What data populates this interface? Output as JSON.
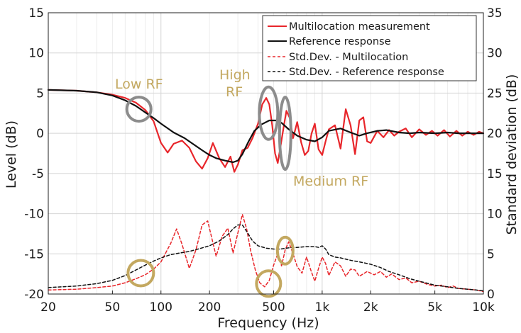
{
  "chart_data": {
    "type": "line",
    "xlabel": "Frequency (Hz)",
    "ylabel_left": "Level (dB)",
    "ylabel_right": "Standard deviation (dB)",
    "x_scale": "log",
    "xlim": [
      20,
      10000
    ],
    "ylim_left": [
      -20,
      15
    ],
    "ylim_right": [
      0,
      35
    ],
    "x_ticks": [
      20,
      50,
      100,
      200,
      500,
      1000,
      2000,
      5000,
      10000
    ],
    "x_tick_labels": [
      "20",
      "50",
      "100",
      "200",
      "500",
      "1k",
      "2k",
      "5k",
      "10k"
    ],
    "y_ticks_left": [
      15,
      10,
      5,
      0,
      -5,
      -10,
      -15,
      -20
    ],
    "y_tick_labels_left": [
      "15",
      "10",
      "5",
      "0",
      "-5",
      "-10",
      "-15",
      "-20"
    ],
    "y_ticks_right": [
      35,
      30,
      25,
      20,
      15,
      10,
      5,
      0
    ],
    "y_tick_labels_right": [
      "35",
      "30",
      "25",
      "20",
      "15",
      "10",
      "5",
      "0"
    ],
    "grid": true,
    "legend_position": "top-right",
    "series": [
      {
        "name": "Multilocation measurement",
        "color": "#e8262b",
        "style": "solid",
        "axis": "left",
        "x": [
          20,
          30,
          40,
          50,
          60,
          70,
          80,
          90,
          100,
          110,
          120,
          135,
          150,
          165,
          180,
          195,
          210,
          230,
          250,
          270,
          285,
          300,
          320,
          345,
          370,
          400,
          425,
          450,
          470,
          490,
          510,
          530,
          550,
          575,
          600,
          630,
          660,
          700,
          740,
          780,
          820,
          860,
          900,
          950,
          1000,
          1050,
          1100,
          1200,
          1300,
          1400,
          1500,
          1600,
          1700,
          1800,
          1900,
          2000,
          2200,
          2400,
          2600,
          2800,
          3000,
          3300,
          3600,
          4000,
          4400,
          4800,
          5200,
          5700,
          6200,
          6800,
          7400,
          8000,
          8700,
          9400,
          10000
        ],
        "y": [
          5.4,
          5.3,
          5.1,
          4.8,
          4.4,
          3.8,
          2.9,
          1.5,
          -1.2,
          -2.4,
          -1.3,
          -0.9,
          -1.8,
          -3.5,
          -4.4,
          -3.1,
          -1.2,
          -3.1,
          -4.2,
          -2.9,
          -4.8,
          -3.9,
          -2.1,
          -1.8,
          -0.6,
          1.2,
          3.6,
          4.4,
          3.6,
          1.0,
          -2.5,
          -3.7,
          -1.8,
          0.6,
          2.8,
          1.9,
          -0.6,
          1.4,
          -1.1,
          -2.7,
          -2.2,
          0.0,
          1.2,
          -2.0,
          -2.7,
          -1.0,
          0.5,
          1.0,
          -1.9,
          3.0,
          1.0,
          -2.6,
          1.6,
          2.0,
          -1.0,
          -1.2,
          0.3,
          -0.5,
          0.4,
          -0.3,
          0.2,
          0.6,
          -0.5,
          0.5,
          -0.2,
          0.3,
          -0.3,
          0.4,
          -0.4,
          0.3,
          -0.3,
          0.2,
          -0.2,
          0.2,
          0.0
        ]
      },
      {
        "name": "Reference response",
        "color": "#111111",
        "style": "solid",
        "axis": "left",
        "x": [
          20,
          30,
          40,
          50,
          60,
          70,
          80,
          90,
          100,
          120,
          140,
          160,
          180,
          200,
          220,
          250,
          280,
          300,
          320,
          350,
          380,
          420,
          470,
          520,
          560,
          620,
          700,
          800,
          900,
          1000,
          1100,
          1300,
          1500,
          1700,
          1900,
          2200,
          2500,
          3000,
          3500,
          4000,
          5000,
          6000,
          7000,
          8000,
          9000,
          10000
        ],
        "y": [
          5.4,
          5.3,
          5.1,
          4.7,
          4.1,
          3.4,
          2.6,
          1.9,
          1.2,
          0.1,
          -0.6,
          -1.4,
          -2.1,
          -2.7,
          -3.1,
          -3.4,
          -3.6,
          -3.4,
          -2.6,
          -1.0,
          0.3,
          1.1,
          1.6,
          1.6,
          1.3,
          0.5,
          -0.3,
          -0.8,
          -1.0,
          -0.5,
          0.3,
          0.6,
          0.1,
          -0.3,
          0.0,
          0.3,
          0.4,
          0.1,
          0.0,
          0.1,
          0.0,
          0.1,
          0.0,
          0.0,
          0.0,
          0.0
        ]
      },
      {
        "name": "Std.Dev. - Multilocation",
        "color": "#e8262b",
        "style": "dashed",
        "axis": "right",
        "x": [
          20,
          30,
          40,
          50,
          60,
          70,
          80,
          90,
          100,
          115,
          125,
          135,
          150,
          165,
          180,
          195,
          210,
          220,
          240,
          260,
          280,
          300,
          320,
          340,
          360,
          385,
          410,
          440,
          470,
          500,
          530,
          560,
          590,
          620,
          660,
          700,
          750,
          800,
          850,
          900,
          950,
          1000,
          1050,
          1100,
          1200,
          1300,
          1400,
          1500,
          1600,
          1700,
          1900,
          2100,
          2300,
          2500,
          2700,
          3000,
          3300,
          3600,
          4000,
          4500,
          5000,
          5500,
          6000,
          6500,
          7000,
          8000,
          9000,
          10000
        ],
        "y": [
          0.5,
          0.6,
          0.8,
          1.0,
          1.4,
          1.9,
          2.4,
          3.1,
          4.0,
          6.3,
          8.1,
          6.2,
          3.2,
          5.5,
          8.6,
          9.1,
          6.4,
          4.7,
          7.2,
          8.2,
          5.1,
          7.6,
          9.9,
          8.1,
          5.4,
          3.0,
          1.4,
          0.9,
          1.7,
          3.6,
          5.0,
          3.5,
          5.5,
          6.5,
          5.0,
          3.4,
          2.6,
          4.6,
          3.0,
          1.6,
          3.2,
          4.6,
          3.8,
          2.3,
          4.0,
          3.5,
          2.2,
          3.1,
          3.0,
          2.2,
          2.8,
          2.4,
          2.8,
          2.1,
          2.5,
          1.8,
          2.0,
          1.4,
          1.6,
          1.2,
          1.0,
          1.1,
          0.8,
          1.0,
          0.7,
          0.6,
          0.5,
          0.3
        ]
      },
      {
        "name": "Std.Dev. - Reference response",
        "color": "#111111",
        "style": "dashed",
        "axis": "right",
        "x": [
          20,
          30,
          40,
          50,
          60,
          70,
          80,
          90,
          100,
          115,
          130,
          150,
          170,
          200,
          230,
          260,
          280,
          300,
          320,
          345,
          370,
          400,
          450,
          500,
          550,
          600,
          650,
          700,
          800,
          900,
          950,
          1000,
          1050,
          1100,
          1200,
          1300,
          1500,
          1700,
          2000,
          2300,
          2600,
          3000,
          3500,
          4000,
          5000,
          6000,
          7000,
          8000,
          9000,
          10000
        ],
        "y": [
          0.8,
          1.0,
          1.3,
          1.7,
          2.3,
          3.0,
          3.6,
          4.1,
          4.5,
          4.9,
          5.1,
          5.3,
          5.6,
          6.0,
          6.6,
          7.4,
          8.1,
          8.6,
          8.6,
          7.6,
          6.6,
          6.0,
          5.7,
          5.6,
          5.6,
          5.7,
          5.8,
          5.8,
          5.9,
          5.9,
          5.8,
          6.0,
          5.6,
          4.9,
          4.6,
          4.5,
          4.2,
          4.0,
          3.7,
          3.3,
          2.8,
          2.4,
          1.9,
          1.6,
          1.1,
          0.9,
          0.7,
          0.6,
          0.5,
          0.4
        ]
      }
    ],
    "annotations": [
      {
        "text": "Low RF",
        "color": "#c3a860"
      },
      {
        "text": "High",
        "color": "#c3a860"
      },
      {
        "text": "RF",
        "color": "#c3a860"
      },
      {
        "text": "Medium RF",
        "color": "#c3a860"
      }
    ],
    "highlight_markers": [
      {
        "shape": "ellipse",
        "color": "#8c8c8c",
        "axis": "left",
        "x": 73,
        "y": 3.0
      },
      {
        "shape": "ellipse",
        "color": "#8c8c8c",
        "axis": "left",
        "x": 465,
        "y": 2.5
      },
      {
        "shape": "ellipse",
        "color": "#8c8c8c",
        "axis": "left",
        "x": 590,
        "y": 0.0
      },
      {
        "shape": "ellipse",
        "color": "#c3a860",
        "axis": "right",
        "x": 75,
        "y": 2.6
      },
      {
        "shape": "ellipse",
        "color": "#c3a860",
        "axis": "right",
        "x": 465,
        "y": 1.3
      },
      {
        "shape": "ellipse",
        "color": "#c3a860",
        "axis": "right",
        "x": 590,
        "y": 5.4
      }
    ]
  }
}
